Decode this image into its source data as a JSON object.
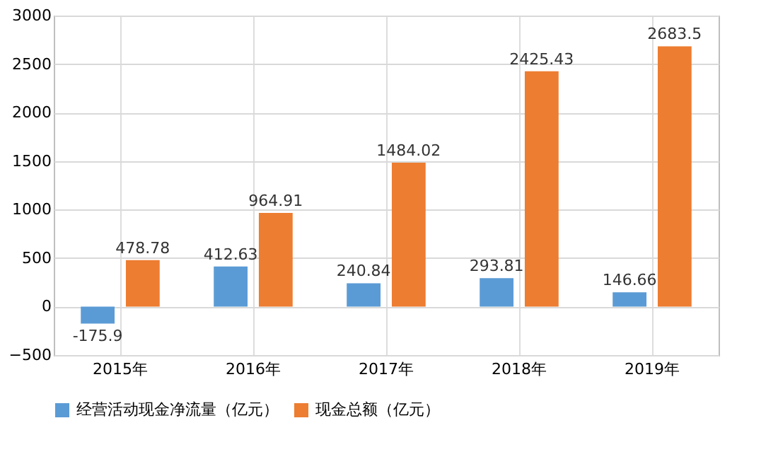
{
  "chart_data": {
    "type": "bar",
    "categories": [
      "2015年",
      "2016年",
      "2017年",
      "2018年",
      "2019年"
    ],
    "series": [
      {
        "name": "经营活动现金净流量（亿元）",
        "color": "#5b9bd5",
        "values": [
          -175.9,
          412.63,
          240.84,
          293.81,
          146.66
        ]
      },
      {
        "name": "现金总额（亿元）",
        "color": "#ed7d31",
        "values": [
          478.78,
          964.91,
          1484.02,
          2425.43,
          2683.5
        ]
      }
    ],
    "ylim": [
      -500,
      3000
    ],
    "yticks": [
      -500,
      0,
      500,
      1000,
      1500,
      2000,
      2500,
      3000
    ],
    "grid": true,
    "legend": "bottom",
    "data_labels": true
  }
}
